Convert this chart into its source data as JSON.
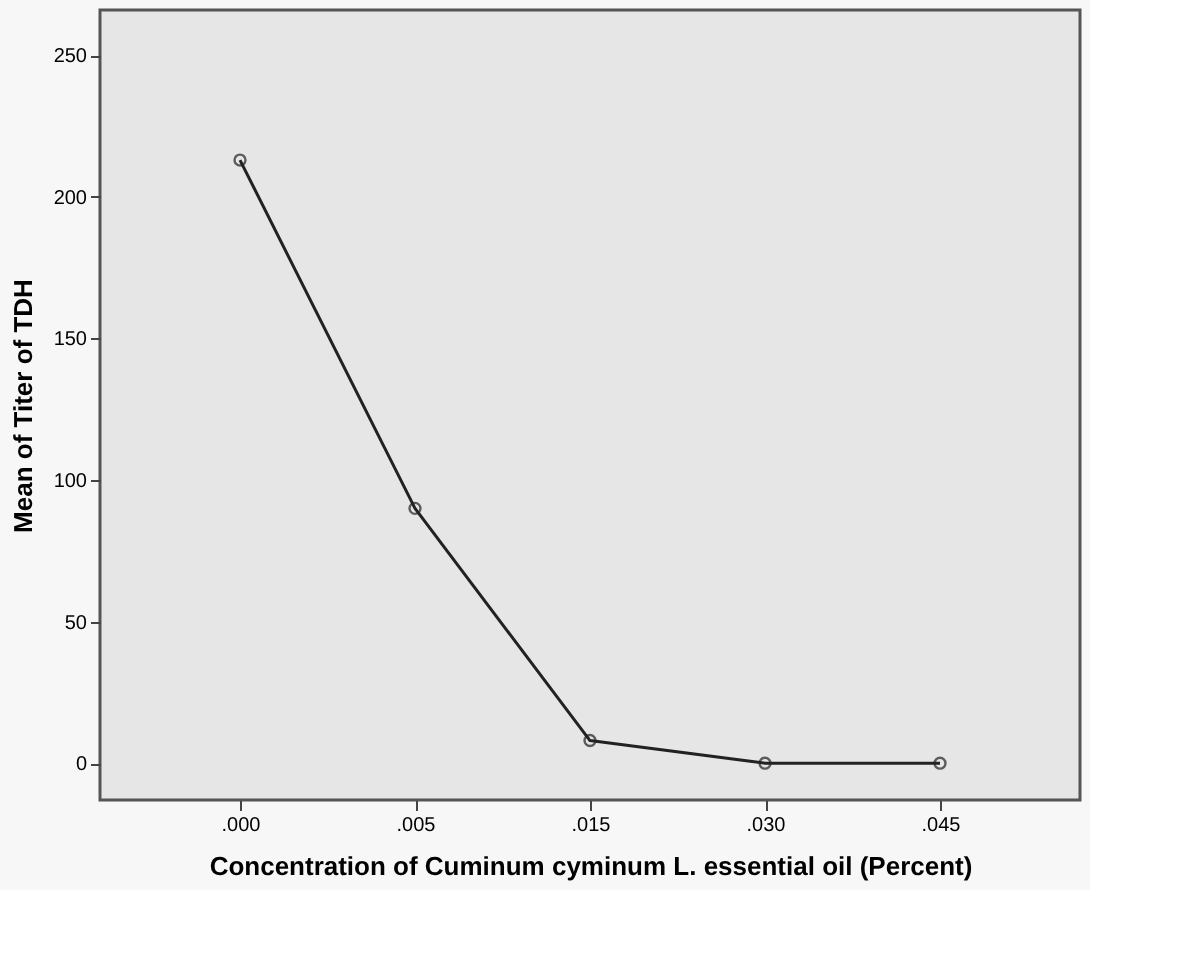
{
  "chart_data": {
    "type": "line",
    "xlabel": "Concentration of Cuminum cyminum L. essential oil (Percent)",
    "ylabel": "Mean of Titer of TDH",
    "categories": [
      ".000",
      ".005",
      ".015",
      ".030",
      ".045"
    ],
    "series": [
      {
        "color": "#222222",
        "values": [
          213,
          90,
          8,
          0,
          0
        ]
      }
    ],
    "ylim": [
      -13,
      266
    ],
    "yticks": [
      0,
      50,
      100,
      150,
      200,
      250
    ],
    "grid": false,
    "marker": "circle",
    "line_style": "solid"
  }
}
